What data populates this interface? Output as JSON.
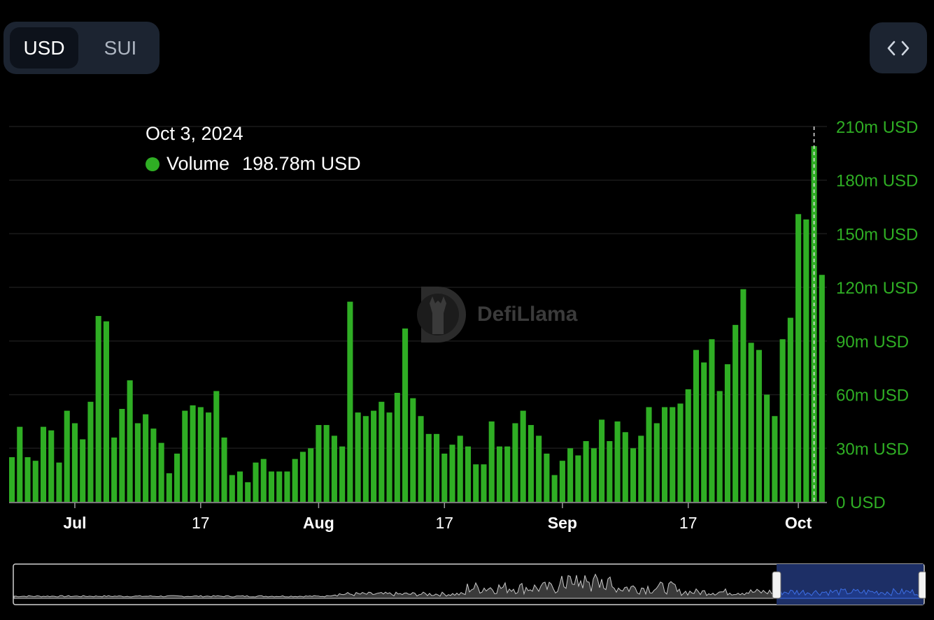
{
  "currency_toggle": {
    "options": [
      "USD",
      "SUI"
    ],
    "selected": "USD"
  },
  "embed_button": {
    "icon": "code-brackets-icon"
  },
  "tooltip": {
    "date": "Oct 3, 2024",
    "series_label": "Volume",
    "value": "198.78m USD",
    "dot_color": "#2fae24"
  },
  "watermark": {
    "text": "DefiLlama"
  },
  "colors": {
    "bar": "#2fae24",
    "axis_label": "#2fae24",
    "grid": "#1a1a1a",
    "brush_fill": "#2a2a2a",
    "brush_selected": "#1d2f66"
  },
  "chart_data": {
    "type": "bar",
    "title": "",
    "xlabel": "",
    "ylabel": "",
    "ylim": [
      0,
      210
    ],
    "yunit": "m USD",
    "y_ticks": [
      "0 USD",
      "30m USD",
      "60m USD",
      "90m USD",
      "120m USD",
      "150m USD",
      "180m USD",
      "210m USD"
    ],
    "x_ticks": [
      {
        "label": "Jul",
        "date": "2024-07-01",
        "bold": true
      },
      {
        "label": "17",
        "date": "2024-07-17",
        "bold": false
      },
      {
        "label": "Aug",
        "date": "2024-08-01",
        "bold": true
      },
      {
        "label": "17",
        "date": "2024-08-17",
        "bold": false
      },
      {
        "label": "Sep",
        "date": "2024-09-01",
        "bold": true
      },
      {
        "label": "17",
        "date": "2024-09-17",
        "bold": false
      },
      {
        "label": "Oct",
        "date": "2024-10-01",
        "bold": true
      }
    ],
    "first_date": "2024-06-23",
    "highlight_date": "2024-10-03",
    "series": [
      {
        "name": "Volume",
        "values": [
          25,
          42,
          25,
          23,
          42,
          40,
          22,
          51,
          44,
          35,
          56,
          104,
          101,
          36,
          52,
          68,
          44,
          49,
          41,
          33,
          16,
          27,
          51,
          54,
          53,
          50,
          62,
          36,
          15,
          17,
          11,
          22,
          24,
          17,
          17,
          17,
          24,
          28,
          30,
          43,
          43,
          37,
          31,
          112,
          50,
          48,
          51,
          56,
          50,
          61,
          97,
          58,
          48,
          38,
          38,
          27,
          32,
          37,
          31,
          21,
          21,
          45,
          31,
          31,
          44,
          51,
          43,
          37,
          27,
          15,
          23,
          30,
          26,
          34,
          30,
          46,
          34,
          45,
          39,
          30,
          37,
          53,
          44,
          53,
          53,
          55,
          63,
          85,
          78,
          91,
          62,
          77,
          99,
          119,
          89,
          85,
          60,
          48,
          91,
          103,
          161,
          158,
          199,
          127
        ]
      }
    ]
  }
}
